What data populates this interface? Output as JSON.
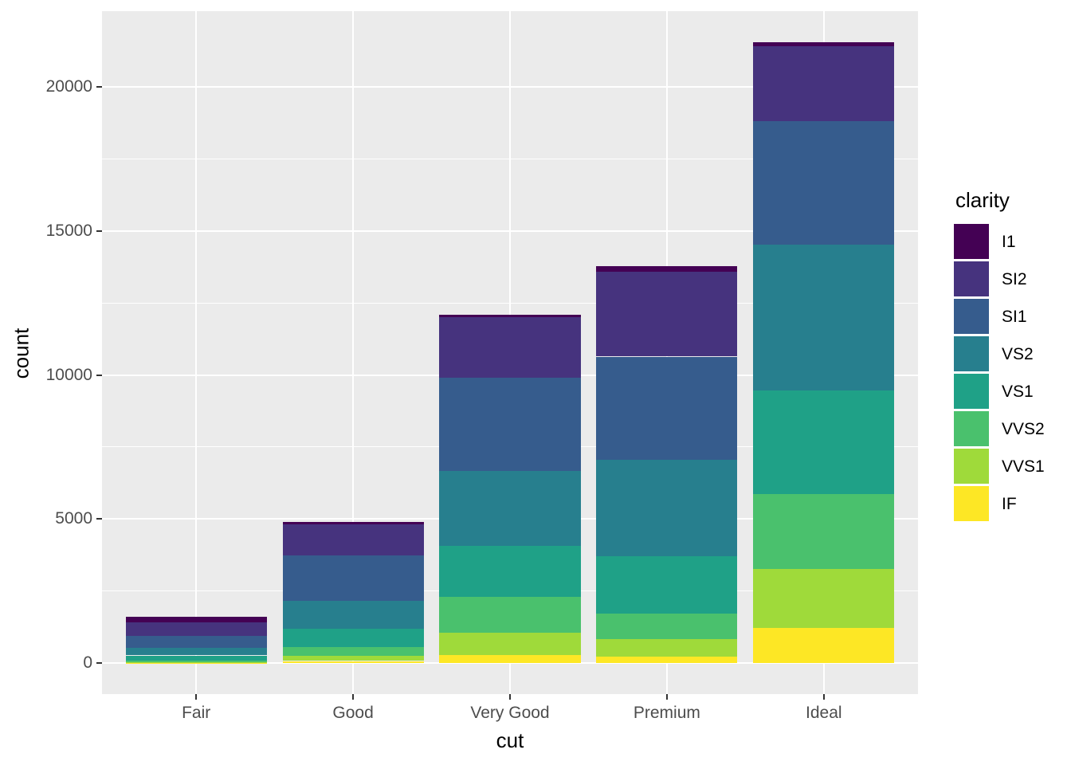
{
  "figure": {
    "background_color": "#FFFFFF",
    "panel_background_color": "#EBEBEB",
    "gridline_color": "#FFFFFF",
    "tick_label_color": "#4D4D4D",
    "tick_mark_color": "#333333",
    "axis_title_color": "#000000"
  },
  "chart_data": {
    "type": "bar",
    "stacked": true,
    "stack_first_series_on_top": true,
    "title": "",
    "xlabel": "cut",
    "ylabel": "count",
    "categories": [
      "Fair",
      "Good",
      "Very Good",
      "Premium",
      "Ideal"
    ],
    "series": [
      {
        "name": "I1",
        "color": "#440154",
        "values": [
          210,
          96,
          84,
          205,
          146
        ]
      },
      {
        "name": "SI2",
        "color": "#46337E",
        "values": [
          466,
          1081,
          2100,
          2949,
          2598
        ]
      },
      {
        "name": "SI1",
        "color": "#365C8D",
        "values": [
          408,
          1560,
          3240,
          3575,
          4282
        ]
      },
      {
        "name": "VS2",
        "color": "#277F8E",
        "values": [
          261,
          978,
          2591,
          3357,
          5071
        ]
      },
      {
        "name": "VS1",
        "color": "#1FA187",
        "values": [
          170,
          648,
          1775,
          1989,
          3589
        ]
      },
      {
        "name": "VVS2",
        "color": "#4AC16D",
        "values": [
          69,
          286,
          1235,
          870,
          2606
        ]
      },
      {
        "name": "VVS1",
        "color": "#9FDA3A",
        "values": [
          17,
          186,
          789,
          616,
          2047
        ]
      },
      {
        "name": "IF",
        "color": "#FDE725",
        "values": [
          9,
          71,
          268,
          230,
          1212
        ]
      }
    ],
    "stack_totals": [
      1610,
      4906,
      12082,
      13791,
      21551
    ],
    "y_ticks": [
      0,
      5000,
      10000,
      15000,
      20000
    ],
    "y_minor_gridlines": [
      2500,
      7500,
      12500,
      17500
    ],
    "ylim": [
      -1078,
      22629
    ],
    "grid": true,
    "legend": {
      "title": "clarity",
      "position": "right",
      "labels": [
        "I1",
        "SI2",
        "SI1",
        "VS2",
        "VS1",
        "VVS2",
        "VVS1",
        "IF"
      ]
    }
  }
}
